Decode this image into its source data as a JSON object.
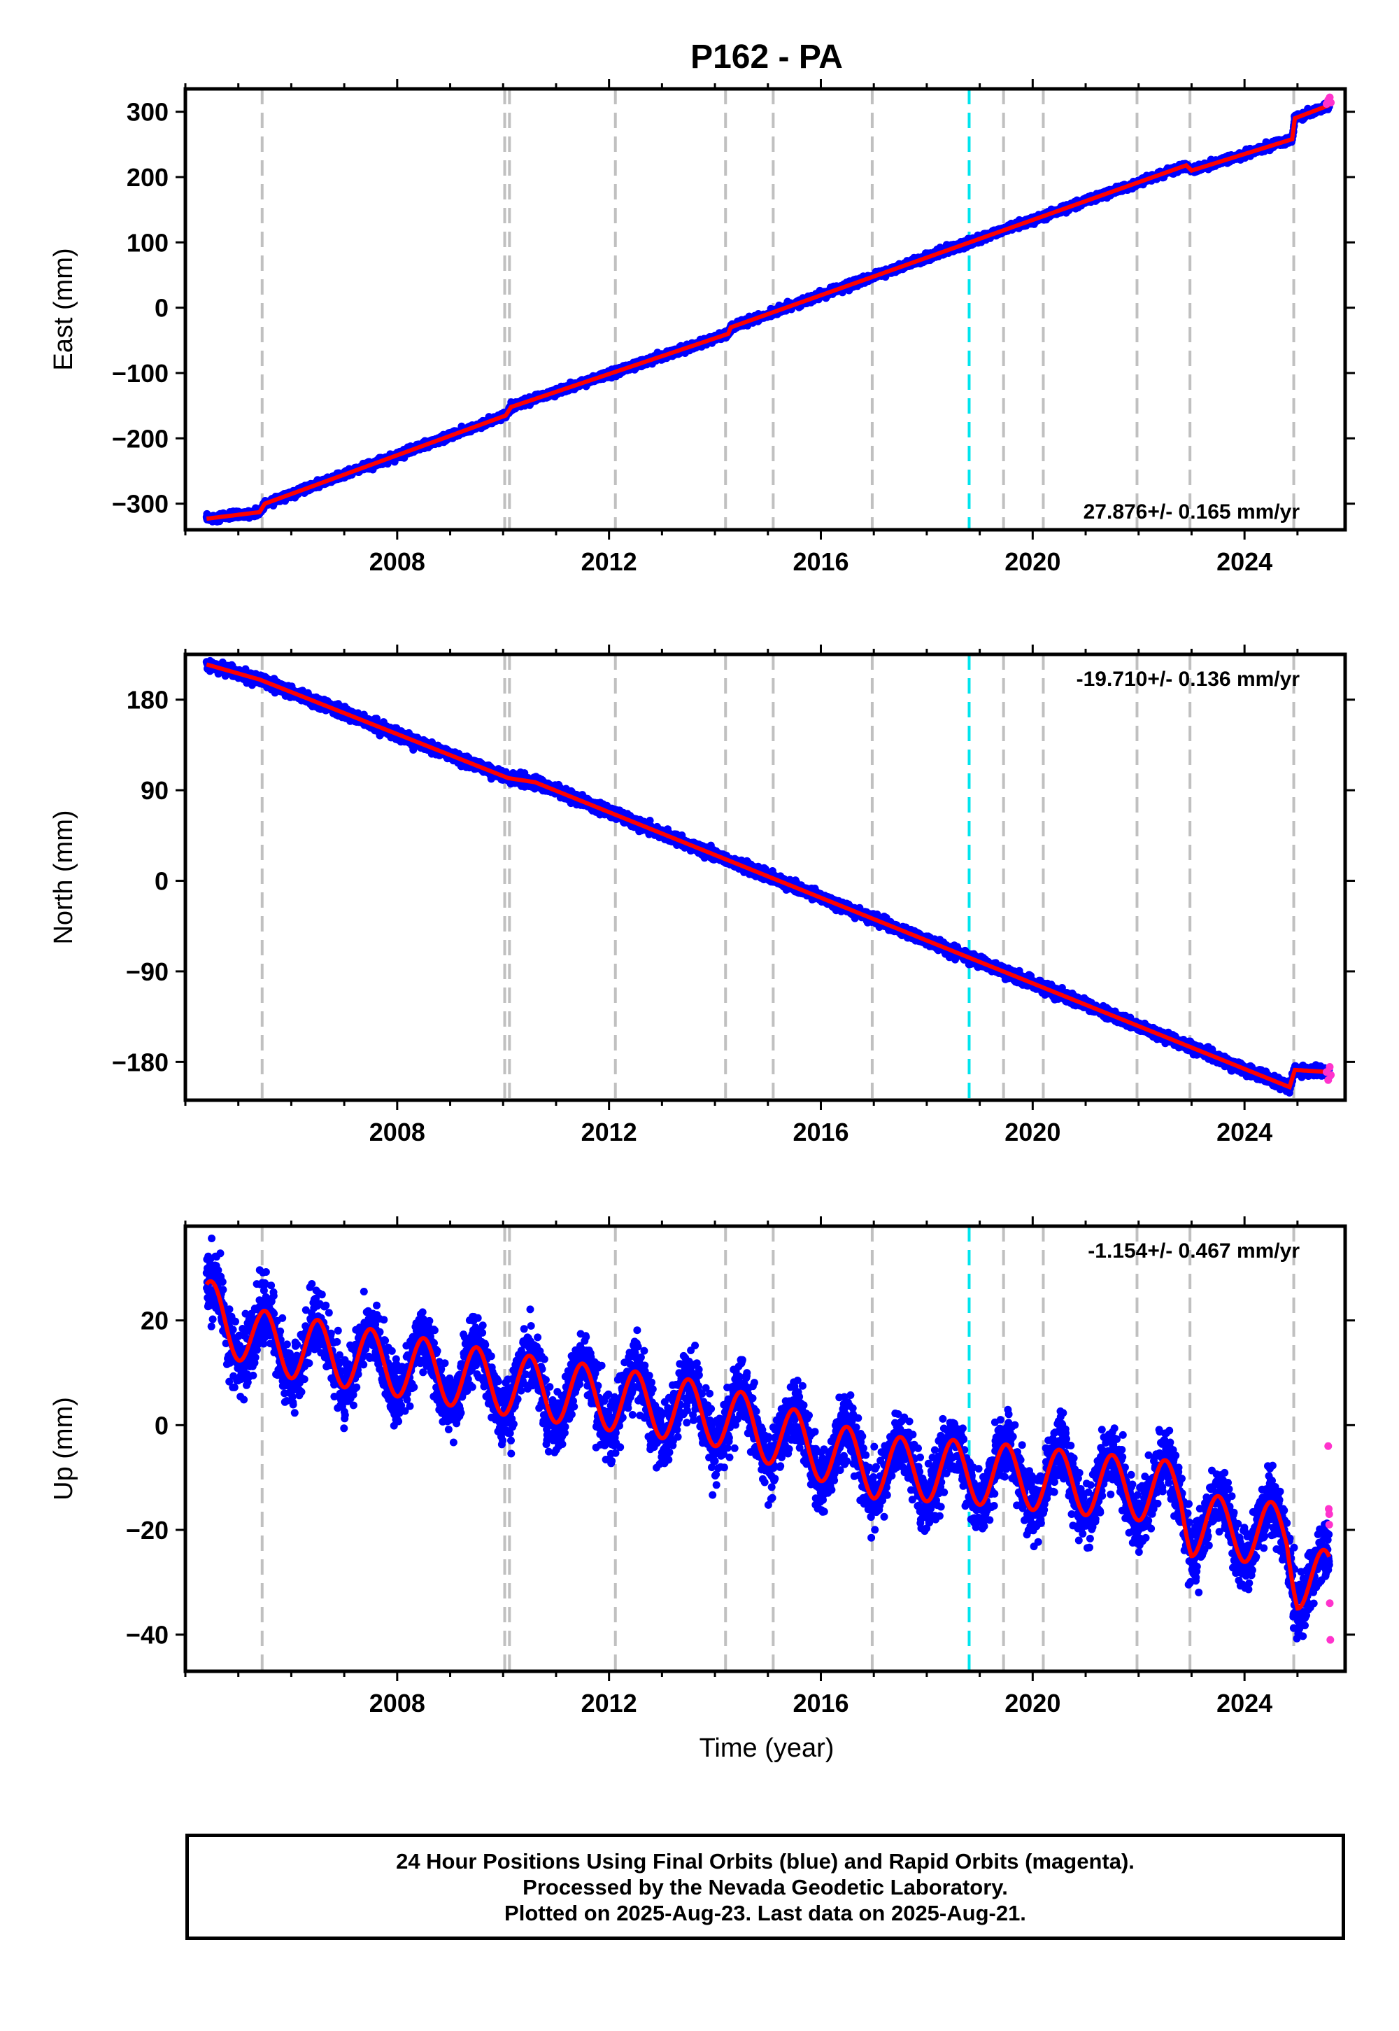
{
  "title": "P162 - PA",
  "xlabel": "Time (year)",
  "colors": {
    "final_orbits": "#0000ff",
    "rapid_orbits": "#ff33cc",
    "model": "#ff0000",
    "event_line": "#c0c0c0",
    "equipment_change_line": "#00e5ee"
  },
  "footer": {
    "line1": "24 Hour Positions Using Final Orbits (blue) and Rapid Orbits (magenta).",
    "line2": "Processed by the Nevada Geodetic Laboratory.",
    "line3": "Plotted on 2025-Aug-23. Last data on 2025-Aug-21."
  },
  "chart_data": [
    {
      "type": "scatter",
      "ylabel": "East (mm)",
      "rate_label": "27.876+/- 0.165 mm/yr",
      "rate_position": "bottom-right",
      "xlim": [
        2004.0,
        2025.9
      ],
      "ylim": [
        -340,
        335
      ],
      "xticks": [
        2008,
        2012,
        2016,
        2020,
        2024
      ],
      "yticks": [
        -300,
        -200,
        -100,
        0,
        100,
        200,
        300
      ],
      "ytick_labels": [
        "−300",
        "−200",
        "−100",
        "0",
        "100",
        "200",
        "300"
      ],
      "trend_breakpoints": [
        [
          2004.4,
          -323
        ],
        [
          2005.4,
          -313
        ],
        [
          2005.5,
          -300
        ],
        [
          2010.05,
          -165
        ],
        [
          2010.15,
          -152
        ],
        [
          2014.25,
          -40
        ],
        [
          2014.3,
          -30
        ],
        [
          2022.9,
          218
        ],
        [
          2023.0,
          210
        ],
        [
          2024.9,
          258
        ],
        [
          2024.95,
          290
        ],
        [
          2025.6,
          310
        ]
      ],
      "noise_mm": 2.5,
      "rapid_points": [
        [
          2025.55,
          312
        ],
        [
          2025.58,
          318
        ],
        [
          2025.61,
          322
        ],
        [
          2025.63,
          314
        ]
      ]
    },
    {
      "type": "scatter",
      "ylabel": "North (mm)",
      "rate_label": "-19.710+/- 0.136 mm/yr",
      "rate_position": "top-right",
      "xlim": [
        2004.0,
        2025.9
      ],
      "ylim": [
        -218,
        225
      ],
      "xticks": [
        2008,
        2012,
        2016,
        2020,
        2024
      ],
      "yticks": [
        -180,
        -90,
        0,
        90,
        180
      ],
      "ytick_labels": [
        "−180",
        "−90",
        "0",
        "90",
        "180"
      ],
      "trend_breakpoints": [
        [
          2004.4,
          215
        ],
        [
          2005.4,
          200
        ],
        [
          2010.1,
          102
        ],
        [
          2010.6,
          98
        ],
        [
          2024.85,
          -205
        ],
        [
          2024.95,
          -188
        ],
        [
          2025.6,
          -190
        ]
      ],
      "noise_mm": 2.5,
      "rapid_points": [
        [
          2025.55,
          -190
        ],
        [
          2025.58,
          -198
        ],
        [
          2025.61,
          -185
        ],
        [
          2025.63,
          -193
        ]
      ]
    },
    {
      "type": "scatter",
      "ylabel": "Up (mm)",
      "rate_label": "-1.154+/- 0.467 mm/yr",
      "rate_position": "top-right",
      "xlim": [
        2004.0,
        2025.9
      ],
      "ylim": [
        -47,
        38
      ],
      "xticks": [
        2008,
        2012,
        2016,
        2020,
        2024
      ],
      "yticks": [
        -40,
        -20,
        0,
        20
      ],
      "ytick_labels": [
        "−40",
        "−20",
        "0",
        "20"
      ],
      "trend_breakpoints": [
        [
          2004.4,
          22
        ],
        [
          2005.4,
          16
        ],
        [
          2010.0,
          8
        ],
        [
          2014.0,
          2
        ],
        [
          2017.0,
          -8
        ],
        [
          2018.8,
          -9
        ],
        [
          2022.8,
          -13
        ],
        [
          2023.0,
          -19
        ],
        [
          2024.8,
          -21
        ],
        [
          2025.0,
          -29
        ],
        [
          2025.6,
          -30
        ]
      ],
      "seasonal_amplitude_mm": 6,
      "noise_mm": 3,
      "rapid_points": [
        [
          2025.58,
          -4
        ],
        [
          2025.59,
          -16
        ],
        [
          2025.6,
          -17
        ],
        [
          2025.6,
          -19
        ],
        [
          2025.61,
          -34
        ],
        [
          2025.62,
          -41
        ]
      ]
    }
  ],
  "event_lines_years": [
    2005.45,
    2010.03,
    2010.12,
    2012.12,
    2014.2,
    2015.1,
    2016.97,
    2019.45,
    2020.2,
    2021.97,
    2022.97,
    2024.93
  ],
  "equipment_change_years": [
    2018.8
  ]
}
